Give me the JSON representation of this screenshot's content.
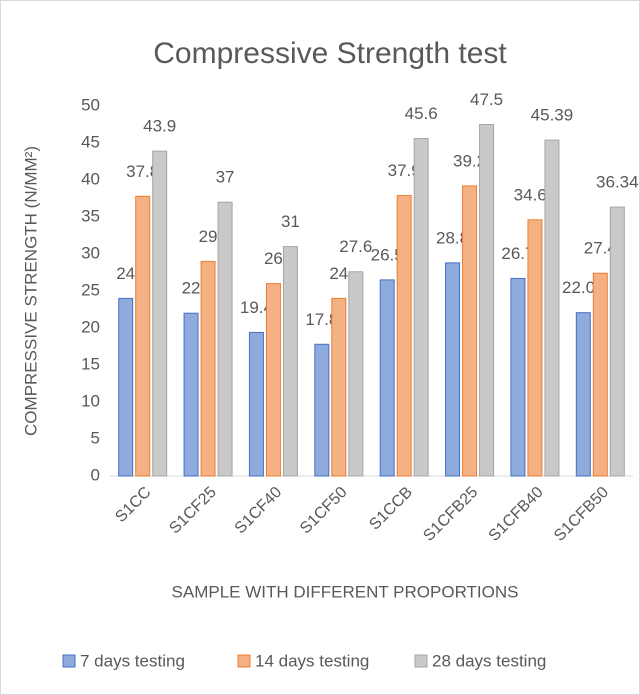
{
  "chart_data": {
    "type": "bar",
    "title": "Compressive Strength test",
    "xlabel": "SAMPLE WITH DIFFERENT PROPORTIONS",
    "ylabel": "COMPRESSIVE STRENGTH (N/MM²)",
    "categories": [
      "S1CC",
      "S1CF25",
      "S1CF40",
      "S1CF50",
      "S1CCB",
      "S1CFB25",
      "S1CFB40",
      "S1CFB50"
    ],
    "series": [
      {
        "name": "7 days testing",
        "color": "#8faadc",
        "values": [
          24,
          22,
          19.4,
          17.8,
          26.5,
          28.8,
          26.7,
          22.07
        ]
      },
      {
        "name": "14 days testing",
        "color": "#f4b183",
        "values": [
          37.8,
          29,
          26,
          24,
          37.9,
          39.2,
          34.62,
          27.4
        ]
      },
      {
        "name": "28 days testing",
        "color": "#c9c9c9",
        "values": [
          43.9,
          37,
          31,
          27.6,
          45.6,
          47.5,
          45.39,
          36.34
        ]
      }
    ],
    "ylim": [
      0,
      50
    ],
    "yticks": [
      0,
      5,
      10,
      15,
      20,
      25,
      30,
      35,
      40,
      45,
      50
    ],
    "grid": false,
    "legend": "bottom"
  }
}
